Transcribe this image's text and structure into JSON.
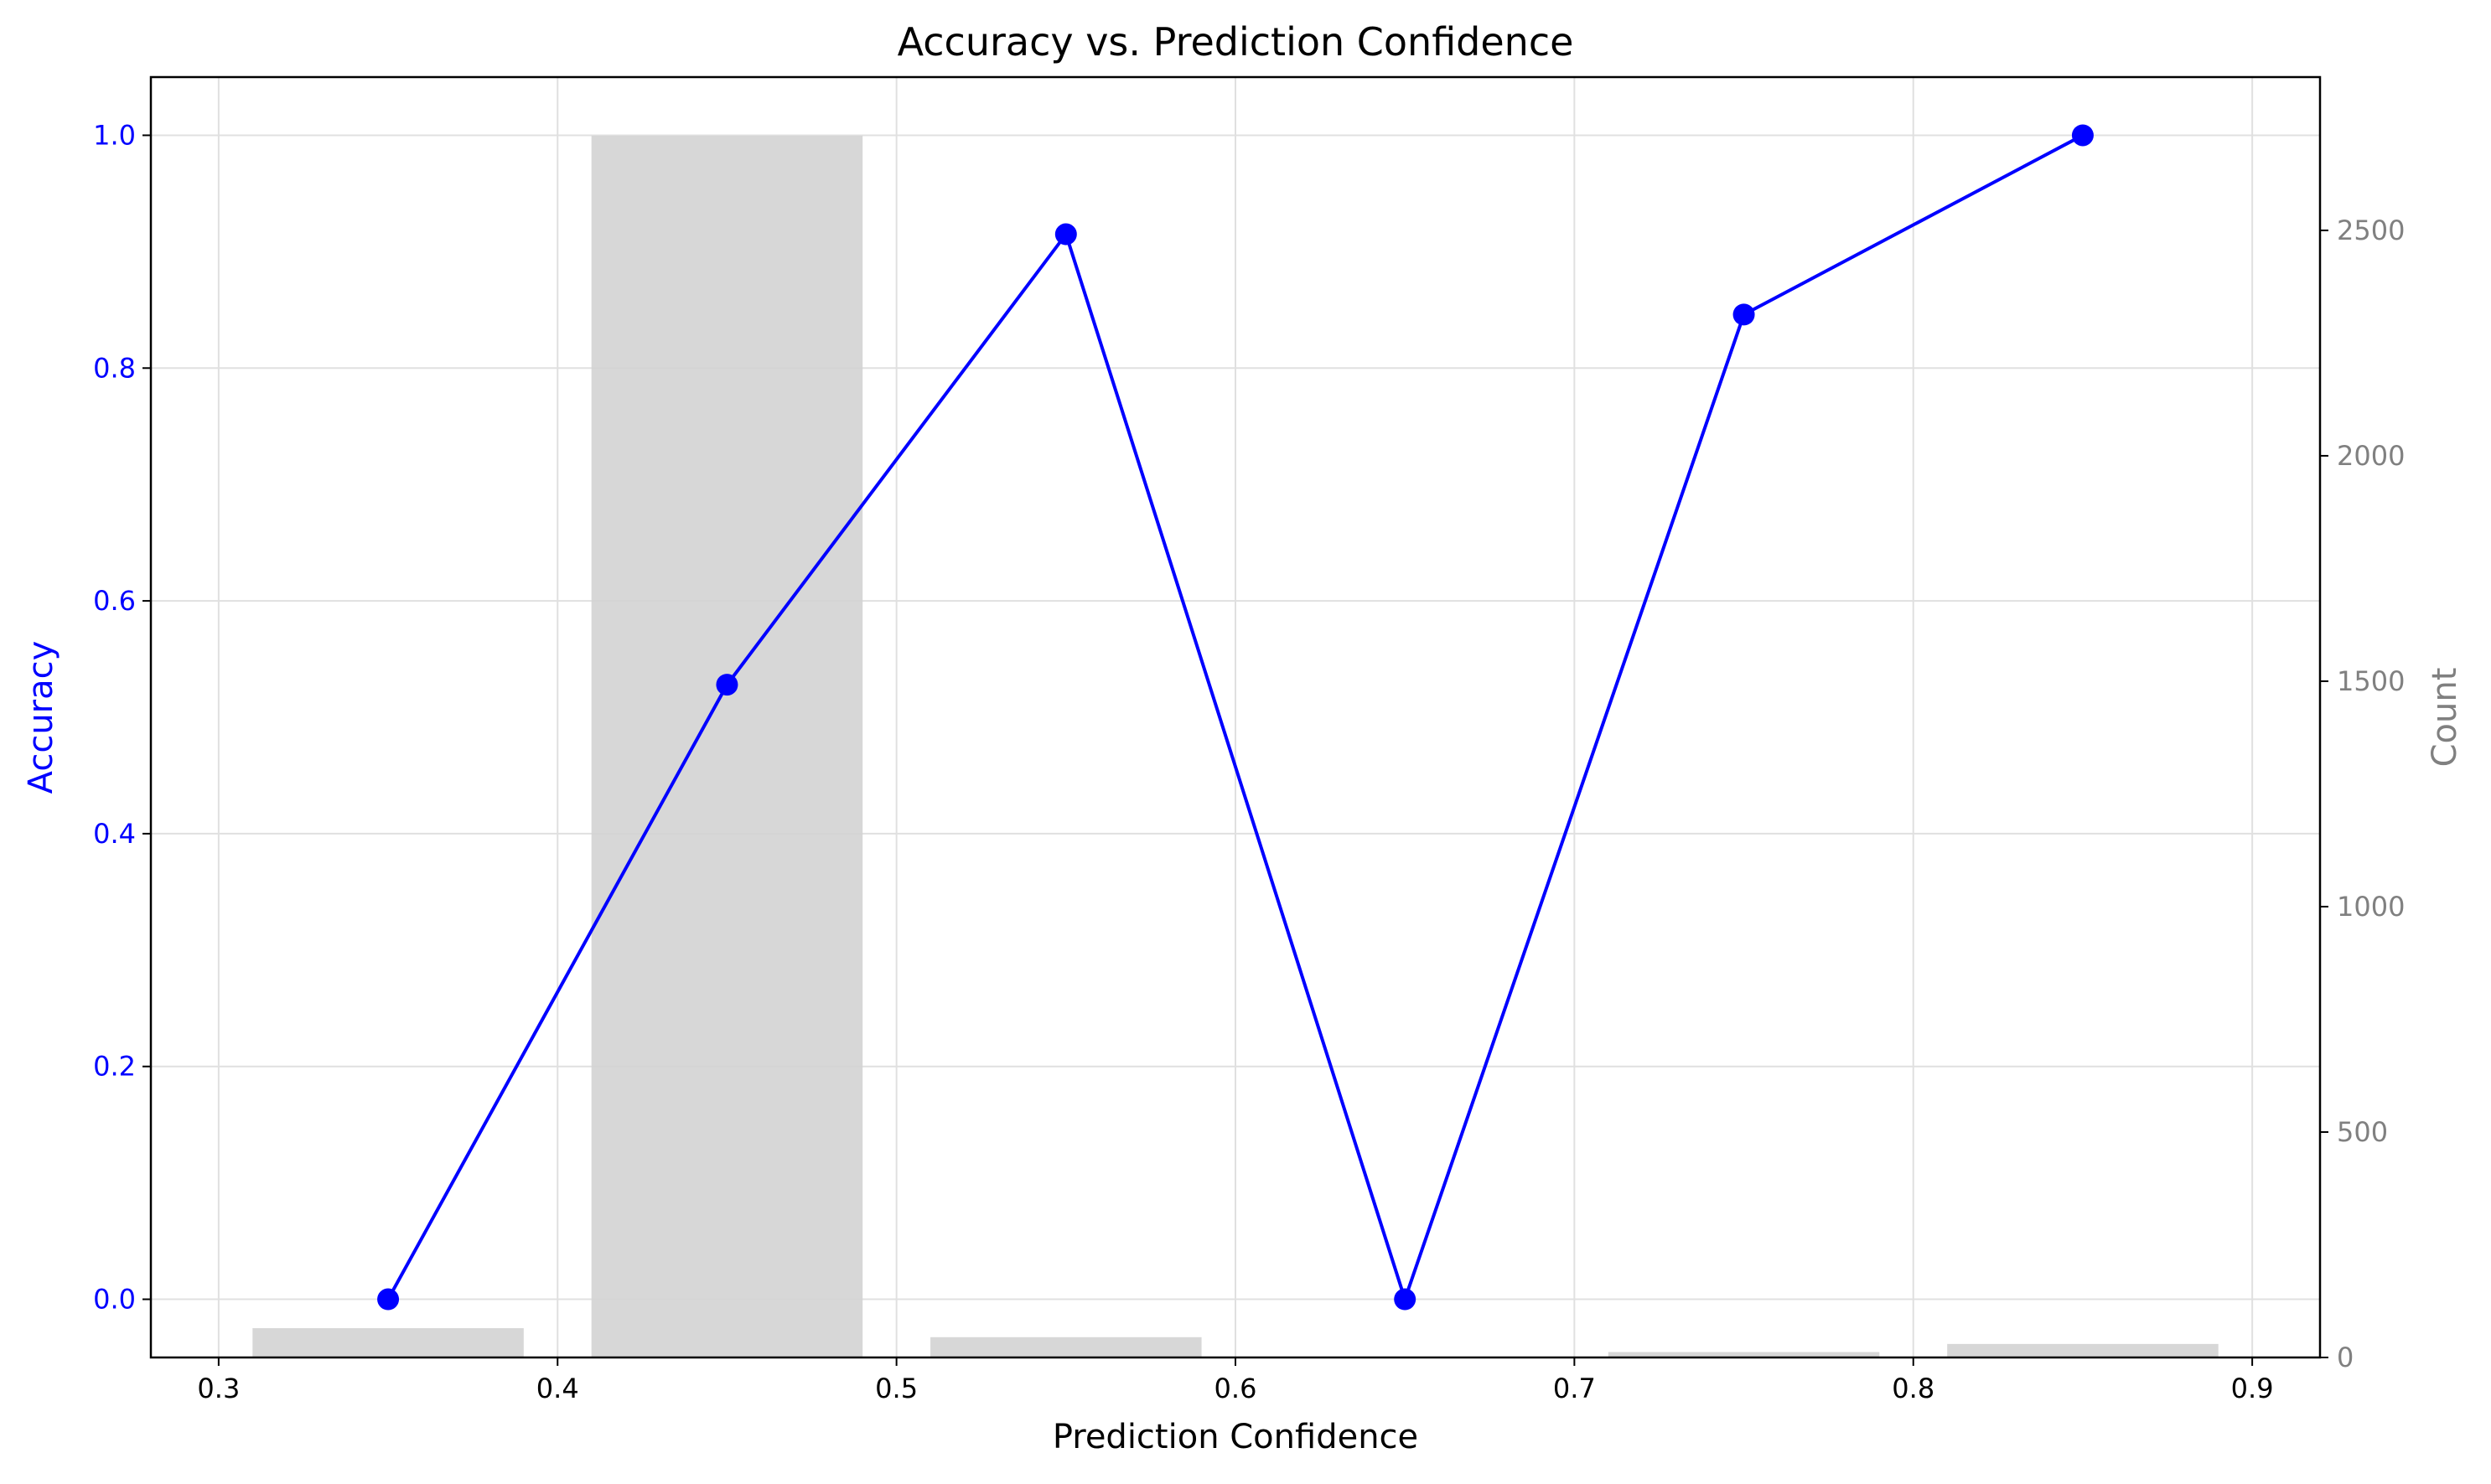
{
  "chart_data": {
    "type": "bar+line",
    "title": "Accuracy vs. Prediction Confidence",
    "xlabel": "Prediction Confidence",
    "ylabel_left": "Accuracy",
    "ylabel_right": "Count",
    "xlim": [
      0.28,
      0.92
    ],
    "ylim_left": [
      -0.05,
      1.05
    ],
    "ylim_right": [
      0,
      2840
    ],
    "x_ticks": [
      "0.3",
      "0.4",
      "0.5",
      "0.6",
      "0.7",
      "0.8",
      "0.9"
    ],
    "y_left_ticks": [
      "0.0",
      "0.2",
      "0.4",
      "0.6",
      "0.8",
      "1.0"
    ],
    "y_right_ticks": [
      "0",
      "500",
      "1000",
      "1500",
      "2000",
      "2500"
    ],
    "grid": true,
    "series": [
      {
        "kind": "line",
        "axis": "left",
        "color": "#0000ff",
        "x": [
          0.35,
          0.45,
          0.55,
          0.65,
          0.75,
          0.85
        ],
        "values": [
          0.0,
          0.528,
          0.915,
          0.0,
          0.846,
          1.0
        ]
      },
      {
        "kind": "bar",
        "axis": "right",
        "color": "#d3d3d3",
        "x": [
          0.35,
          0.45,
          0.55,
          0.65,
          0.75,
          0.85
        ],
        "bin_width": 0.08,
        "values": [
          65,
          2710,
          45,
          0,
          12,
          30
        ]
      }
    ],
    "colors": {
      "left_axis": "#0000ff",
      "right_axis": "#808080",
      "grid": "#e0e0e0",
      "line": "#0000ff",
      "bar": "#d3d3d3"
    }
  }
}
